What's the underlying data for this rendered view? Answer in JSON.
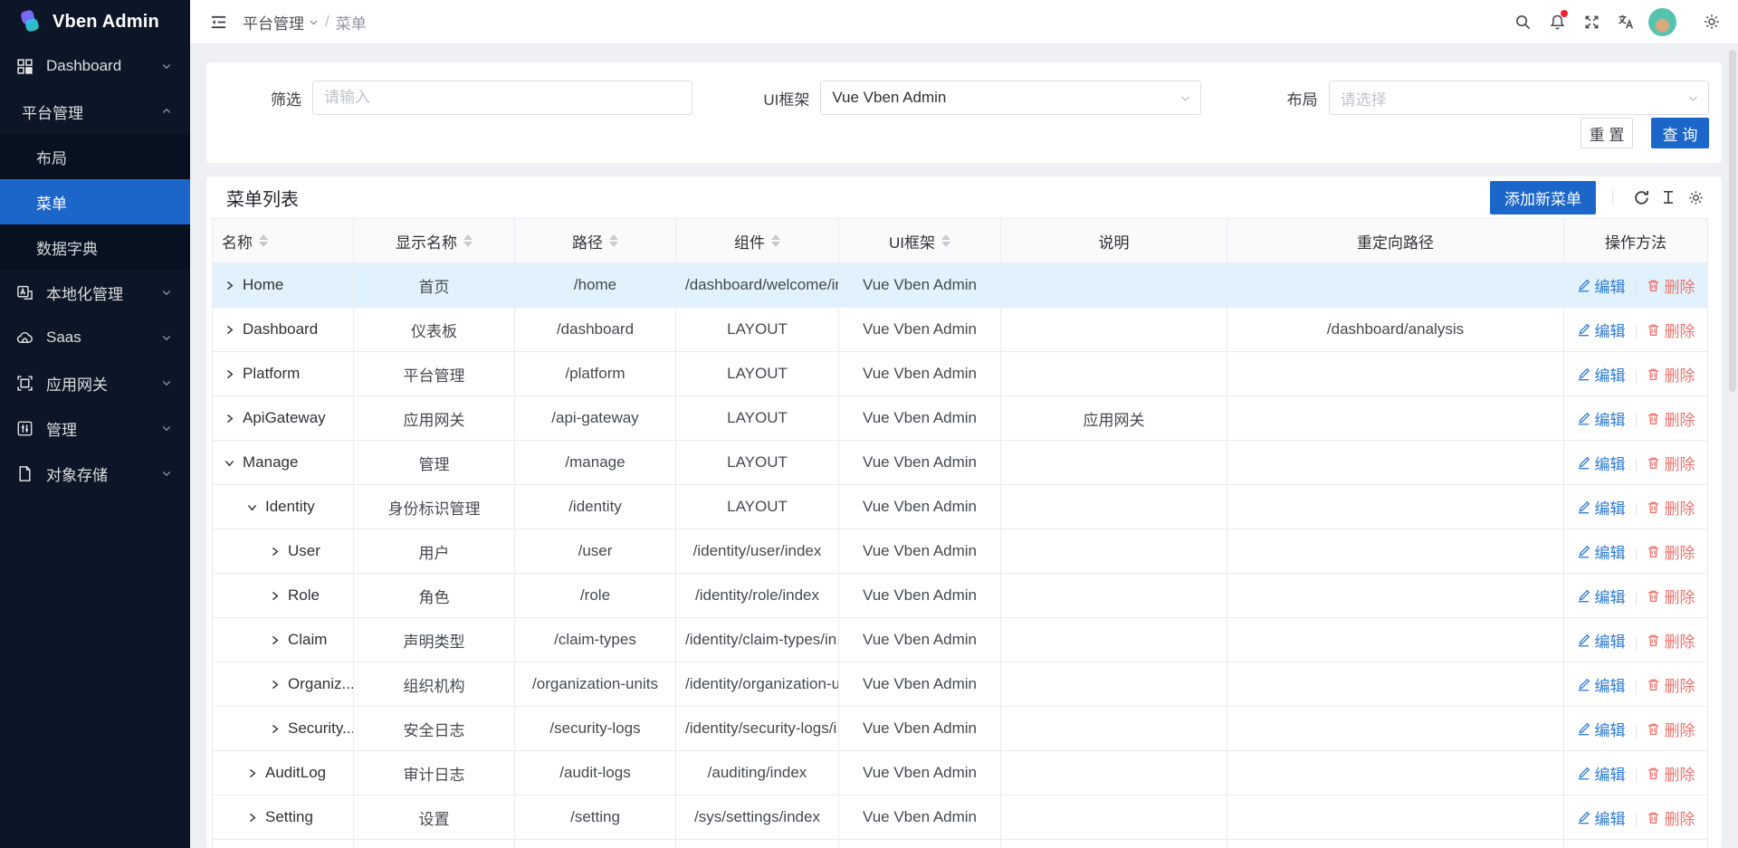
{
  "app": {
    "title": "Vben Admin"
  },
  "colors": {
    "primary": "#1d66c9",
    "sidebar_bg": "#0c1626",
    "submenu_bg": "#071120",
    "selected_menu": "#1d66c9",
    "highlight_row": "#e2f2fc",
    "edit_link": "#2d7ad2",
    "delete_link": "#ee736e",
    "notification_badge": "#f5222d"
  },
  "sidebar": {
    "items": [
      {
        "key": "dashboard",
        "label": "Dashboard",
        "icon": "dashboard",
        "collapsible": true
      },
      {
        "key": "platform-management",
        "label": "平台管理",
        "expanded": true,
        "children": [
          {
            "key": "layout",
            "label": "布局",
            "active": false
          },
          {
            "key": "menu",
            "label": "菜单",
            "active": true
          },
          {
            "key": "data-dictionary",
            "label": "数据字典",
            "active": false
          }
        ]
      },
      {
        "key": "localization",
        "label": "本地化管理",
        "icon": "localization",
        "collapsible": true
      },
      {
        "key": "saas",
        "label": "Saas",
        "icon": "saas",
        "collapsible": true
      },
      {
        "key": "app-gateway",
        "label": "应用网关",
        "icon": "gateway",
        "collapsible": true
      },
      {
        "key": "manage",
        "label": "管理",
        "icon": "manage",
        "collapsible": true
      },
      {
        "key": "object-storage",
        "label": "对象存储",
        "icon": "storage",
        "collapsible": true
      }
    ]
  },
  "header": {
    "breadcrumb": {
      "parent": "平台管理",
      "current": "菜单"
    },
    "icon_names": [
      "search-icon",
      "notification-icon",
      "fullscreen-icon",
      "translate-icon",
      "avatar",
      "settings-icon"
    ]
  },
  "filter": {
    "field1_label": "筛选",
    "field1_placeholder": "请输入",
    "field2_label": "UI框架",
    "field2_value": "Vue Vben Admin",
    "field3_label": "布局",
    "field3_placeholder": "请选择",
    "reset_button": "重 置",
    "query_button": "查 询"
  },
  "table": {
    "title": "菜单列表",
    "add_button": "添加新菜单",
    "toolbar_icon_names": [
      "refresh-icon",
      "row-height-icon",
      "column-settings-icon"
    ],
    "actions": {
      "edit": "编辑",
      "delete": "删除"
    },
    "columns": [
      {
        "key": "name",
        "label": "名称",
        "sortable": true,
        "align": "left"
      },
      {
        "key": "display-name",
        "label": "显示名称",
        "sortable": true
      },
      {
        "key": "path",
        "label": "路径",
        "sortable": true
      },
      {
        "key": "component",
        "label": "组件",
        "sortable": true
      },
      {
        "key": "ui-framework",
        "label": "UI框架",
        "sortable": true
      },
      {
        "key": "description",
        "label": "说明",
        "sortable": false
      },
      {
        "key": "redirect-path",
        "label": "重定向路径",
        "sortable": false
      },
      {
        "key": "actions",
        "label": "操作方法",
        "sortable": false
      }
    ],
    "rows": [
      {
        "name": "Home",
        "level": 0,
        "expanded": false,
        "display_name": "首页",
        "path": "/home",
        "component": "/dashboard/welcome/in...",
        "ui_framework": "Vue Vben Admin",
        "description": "",
        "redirect": "",
        "highlighted": true
      },
      {
        "name": "Dashboard",
        "level": 0,
        "expanded": false,
        "display_name": "仪表板",
        "path": "/dashboard",
        "component": "LAYOUT",
        "ui_framework": "Vue Vben Admin",
        "description": "",
        "redirect": "/dashboard/analysis"
      },
      {
        "name": "Platform",
        "level": 0,
        "expanded": false,
        "display_name": "平台管理",
        "path": "/platform",
        "component": "LAYOUT",
        "ui_framework": "Vue Vben Admin",
        "description": "",
        "redirect": ""
      },
      {
        "name": "ApiGateway",
        "level": 0,
        "expanded": false,
        "display_name": "应用网关",
        "path": "/api-gateway",
        "component": "LAYOUT",
        "ui_framework": "Vue Vben Admin",
        "description": "应用网关",
        "redirect": ""
      },
      {
        "name": "Manage",
        "level": 0,
        "expanded": true,
        "display_name": "管理",
        "path": "/manage",
        "component": "LAYOUT",
        "ui_framework": "Vue Vben Admin",
        "description": "",
        "redirect": ""
      },
      {
        "name": "Identity",
        "level": 1,
        "expanded": true,
        "display_name": "身份标识管理",
        "path": "/identity",
        "component": "LAYOUT",
        "ui_framework": "Vue Vben Admin",
        "description": "",
        "redirect": ""
      },
      {
        "name": "User",
        "level": 2,
        "expanded": false,
        "display_name": "用户",
        "path": "/user",
        "component": "/identity/user/index",
        "ui_framework": "Vue Vben Admin",
        "description": "",
        "redirect": ""
      },
      {
        "name": "Role",
        "level": 2,
        "expanded": false,
        "display_name": "角色",
        "path": "/role",
        "component": "/identity/role/index",
        "ui_framework": "Vue Vben Admin",
        "description": "",
        "redirect": ""
      },
      {
        "name": "Claim",
        "level": 2,
        "expanded": false,
        "display_name": "声明类型",
        "path": "/claim-types",
        "component": "/identity/claim-types/in...",
        "ui_framework": "Vue Vben Admin",
        "description": "",
        "redirect": ""
      },
      {
        "name": "Organiz...",
        "level": 2,
        "expanded": false,
        "display_name": "组织机构",
        "path": "/organization-units",
        "component": "/identity/organization-u...",
        "ui_framework": "Vue Vben Admin",
        "description": "",
        "redirect": ""
      },
      {
        "name": "Security...",
        "level": 2,
        "expanded": false,
        "display_name": "安全日志",
        "path": "/security-logs",
        "component": "/identity/security-logs/i...",
        "ui_framework": "Vue Vben Admin",
        "description": "",
        "redirect": ""
      },
      {
        "name": "AuditLog",
        "level": 1,
        "expanded": false,
        "display_name": "审计日志",
        "path": "/audit-logs",
        "component": "/auditing/index",
        "ui_framework": "Vue Vben Admin",
        "description": "",
        "redirect": ""
      },
      {
        "name": "Setting",
        "level": 1,
        "expanded": false,
        "display_name": "设置",
        "path": "/setting",
        "component": "/sys/settings/index",
        "ui_framework": "Vue Vben Admin",
        "description": "",
        "redirect": ""
      },
      {
        "partial": true
      }
    ]
  }
}
